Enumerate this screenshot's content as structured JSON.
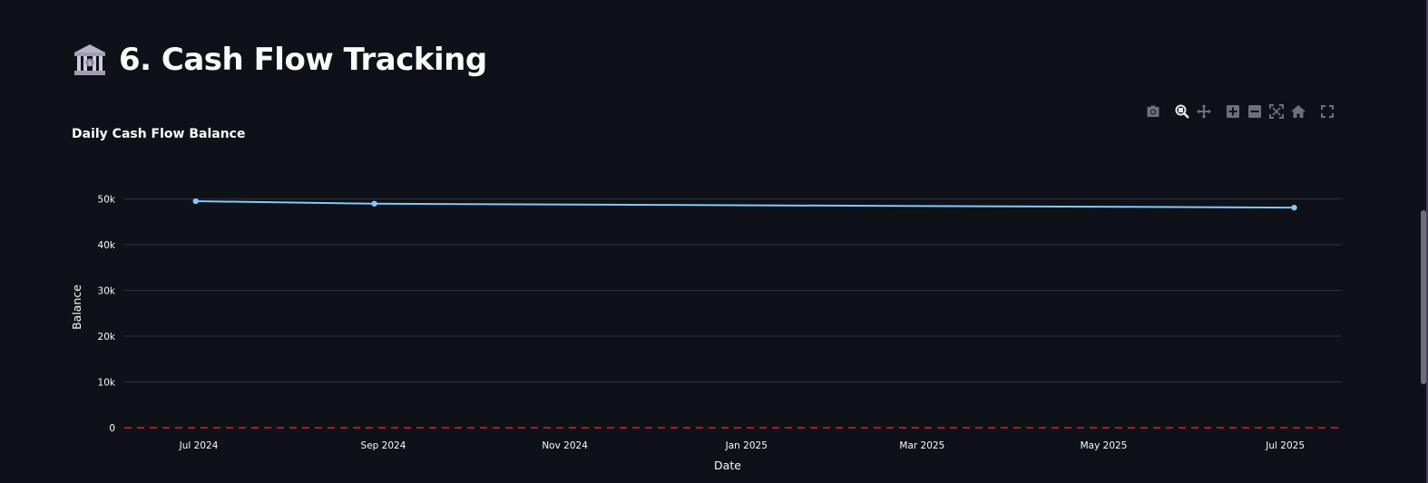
{
  "header": {
    "icon": "bank-icon",
    "title": "6. Cash Flow Tracking"
  },
  "modebar": {
    "icons": [
      "camera-icon",
      "zoom-icon",
      "pan-icon",
      "zoom-in-icon",
      "zoom-out-icon",
      "autoscale-icon",
      "reset-axes-icon",
      "fullscreen-icon"
    ]
  },
  "chart_data": {
    "type": "line",
    "title": "Daily Cash Flow Balance",
    "xlabel": "Date",
    "ylabel": "Balance",
    "x": [
      "2024-06-30",
      "2024-08-29",
      "2025-07-04"
    ],
    "series": [
      {
        "values": [
          49500,
          48950,
          48100
        ],
        "color": "#83c9ff"
      }
    ],
    "x_range": [
      "2024-06-06",
      "2025-07-40"
    ],
    "x_ticks": [
      {
        "date": "2024-07-01",
        "label": "Jul 2024"
      },
      {
        "date": "2024-09-01",
        "label": "Sep 2024"
      },
      {
        "date": "2024-11-01",
        "label": "Nov 2024"
      },
      {
        "date": "2025-01-01",
        "label": "Jan 2025"
      },
      {
        "date": "2025-03-01",
        "label": "Mar 2025"
      },
      {
        "date": "2025-05-01",
        "label": "May 2025"
      },
      {
        "date": "2025-07-01",
        "label": "Jul 2025"
      }
    ],
    "ylim": [
      0,
      50000
    ],
    "y_ticks": [
      {
        "value": 0,
        "label": "0"
      },
      {
        "value": 10000,
        "label": "10k"
      },
      {
        "value": 20000,
        "label": "20k"
      },
      {
        "value": 30000,
        "label": "30k"
      },
      {
        "value": 40000,
        "label": "40k"
      },
      {
        "value": 50000,
        "label": "50k"
      }
    ],
    "reference_line": {
      "value": 0,
      "color": "#e02020",
      "style": "dashed"
    },
    "grid": true,
    "gridcolor": "#31333f"
  }
}
